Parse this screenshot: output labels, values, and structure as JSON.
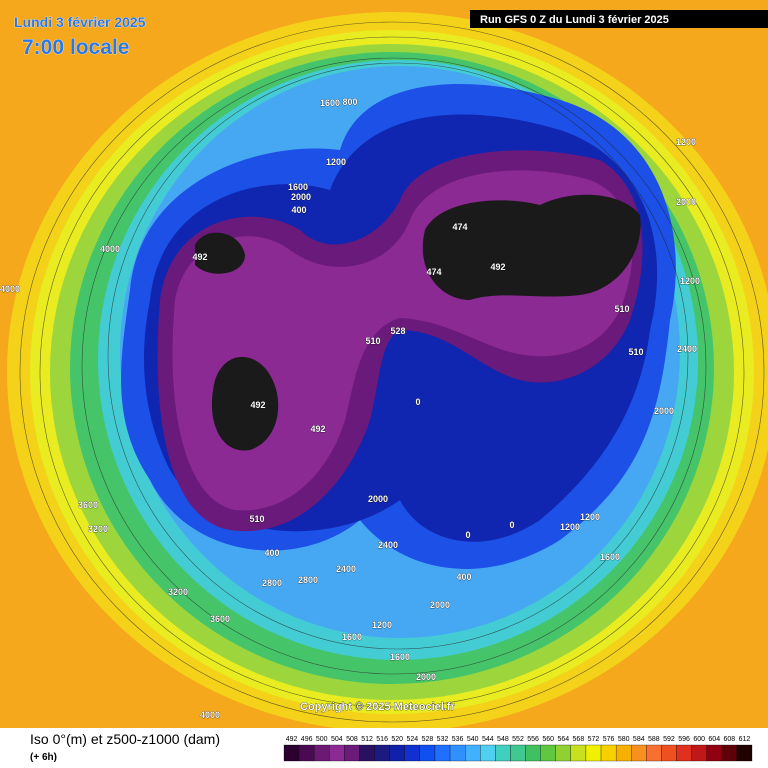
{
  "header": {
    "date": "Lundi 3 février 2025",
    "time": "7:00 locale"
  },
  "run_info": "Run GFS 0 Z du Lundi 3 février 2025",
  "copyright": "Copyright © 2025 Meteociel.fr",
  "legend": {
    "title": "Iso 0°(m) et z500-z1000 (dam)",
    "step": "(+ 6h)",
    "colorbar": {
      "labels": [
        492,
        496,
        500,
        504,
        508,
        512,
        516,
        520,
        524,
        528,
        532,
        536,
        540,
        544,
        548,
        552,
        556,
        560,
        564,
        568,
        572,
        576,
        580,
        584,
        588,
        592,
        596,
        600,
        604,
        608,
        612
      ],
      "colors": [
        "#2b0030",
        "#4a0a52",
        "#6a1a72",
        "#8a2a92",
        "#6b1a7a",
        "#2a1060",
        "#1a1a80",
        "#1020a8",
        "#1030d0",
        "#1050f0",
        "#2070ff",
        "#3090ff",
        "#40b0ff",
        "#50d0f0",
        "#40d0c0",
        "#40c890",
        "#40c060",
        "#60c840",
        "#90d030",
        "#c8e020",
        "#f0f000",
        "#f8d000",
        "#f8b000",
        "#f89020",
        "#f87030",
        "#f05020",
        "#e03020",
        "#c01818",
        "#900010",
        "#600008",
        "#200000"
      ]
    }
  },
  "contour_labels": [
    "474",
    "474",
    "492",
    "492",
    "492",
    "492",
    "510",
    "510",
    "510",
    "528",
    "510",
    "1200",
    "1600",
    "2000",
    "400",
    "800",
    "1600",
    "1200",
    "2000",
    "2400",
    "2800",
    "3200",
    "3600",
    "4000",
    "4000",
    "3600",
    "3200",
    "2800",
    "2400",
    "2000",
    "1600",
    "1200",
    "400",
    "0",
    "0",
    "0",
    "1200",
    "1600",
    "2000",
    "2400",
    "2000",
    "1600",
    "1200",
    "400",
    "4000",
    "1200",
    "2000"
  ]
}
